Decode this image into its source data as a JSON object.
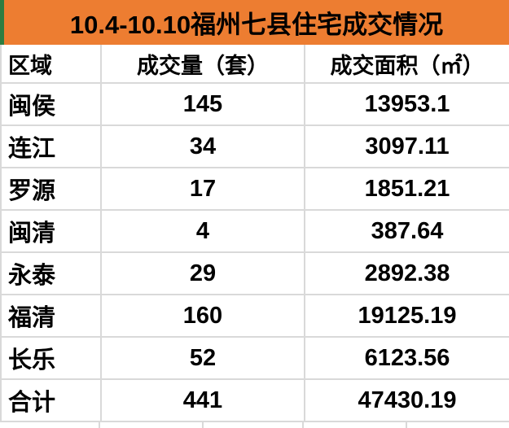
{
  "title": "10.4-10.10福州七县住宅成交情况",
  "chart_data": {
    "type": "table",
    "title": "10.4-10.10福州七县住宅成交情况",
    "columns": [
      "区域",
      "成交量（套）",
      "成交面积（㎡）"
    ],
    "rows": [
      [
        "闽侯",
        145,
        "13953.1"
      ],
      [
        "连江",
        34,
        "3097.11"
      ],
      [
        "罗源",
        17,
        "1851.21"
      ],
      [
        "闽清",
        4,
        "387.64"
      ],
      [
        "永泰",
        29,
        "2892.38"
      ],
      [
        "福清",
        160,
        "19125.19"
      ],
      [
        "长乐",
        52,
        "6123.56"
      ],
      [
        "合计",
        441,
        "47430.19"
      ]
    ],
    "totals_row_label": "合计",
    "layout": "title bar with left green accent strip; 3-column gridline table; totals in last row"
  },
  "colors": {
    "title_bg": "#ED7D31",
    "accent_strip": "#2E7D41",
    "gridline": "#D9D9D9",
    "text": "#000000",
    "cell_bg": "#FFFFFF"
  }
}
